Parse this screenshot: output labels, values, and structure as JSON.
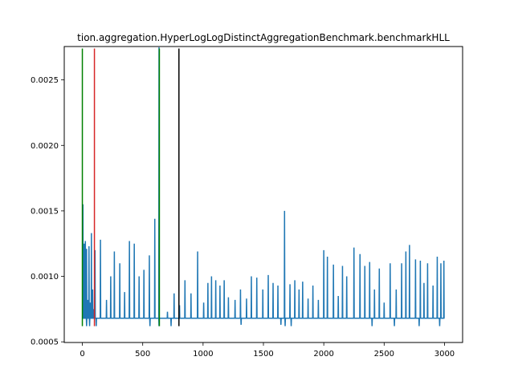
{
  "chart_data": {
    "type": "line",
    "title": "tion.aggregation.HyperLogLogDistinctAggregationBenchmark.benchmarkHLL",
    "xlabel": "",
    "ylabel": "",
    "xlim": [
      -150,
      3150
    ],
    "ylim": [
      0.000495,
      0.002755
    ],
    "x_ticks": [
      0,
      500,
      1000,
      1500,
      2000,
      2500,
      3000
    ],
    "x_tick_labels": [
      "0",
      "500",
      "1000",
      "1500",
      "2000",
      "2500",
      "3000"
    ],
    "y_ticks": [
      0.0005,
      0.001,
      0.0015,
      0.002,
      0.0025
    ],
    "y_tick_labels": [
      "0.0005",
      "0.0010",
      "0.0015",
      "0.0020",
      "0.0025"
    ],
    "grid": false,
    "series_color": "#1f77b4",
    "baseline": 0.00068,
    "spikes": [
      [
        5,
        0.00155
      ],
      [
        15,
        0.00125
      ],
      [
        25,
        0.00127
      ],
      [
        35,
        0.00121
      ],
      [
        45,
        0.00082
      ],
      [
        55,
        0.00123
      ],
      [
        65,
        0.0008
      ],
      [
        75,
        0.00133
      ],
      [
        85,
        0.0009
      ],
      [
        95,
        0.00075
      ],
      [
        105,
        0.0012
      ],
      [
        115,
        0.00062
      ],
      [
        150,
        0.00128
      ],
      [
        200,
        0.00082
      ],
      [
        235,
        0.001
      ],
      [
        265,
        0.00119
      ],
      [
        310,
        0.0011
      ],
      [
        350,
        0.00088
      ],
      [
        390,
        0.00127
      ],
      [
        430,
        0.00125
      ],
      [
        470,
        0.001
      ],
      [
        510,
        0.00105
      ],
      [
        555,
        0.00116
      ],
      [
        600,
        0.00144
      ],
      [
        635,
        0.00275
      ],
      [
        705,
        0.00073
      ],
      [
        760,
        0.00087
      ],
      [
        805,
        0.00078
      ],
      [
        850,
        0.00097
      ],
      [
        900,
        0.00087
      ],
      [
        955,
        0.00119
      ],
      [
        1005,
        0.0008
      ],
      [
        1040,
        0.00095
      ],
      [
        1070,
        0.001
      ],
      [
        1105,
        0.00097
      ],
      [
        1140,
        0.00093
      ],
      [
        1175,
        0.00097
      ],
      [
        1210,
        0.00084
      ],
      [
        1265,
        0.00082
      ],
      [
        1310,
        0.0009
      ],
      [
        1360,
        0.00083
      ],
      [
        1400,
        0.001
      ],
      [
        1445,
        0.00099
      ],
      [
        1495,
        0.0009
      ],
      [
        1540,
        0.00101
      ],
      [
        1580,
        0.00095
      ],
      [
        1620,
        0.00093
      ],
      [
        1675,
        0.0015
      ],
      [
        1720,
        0.00094
      ],
      [
        1760,
        0.00097
      ],
      [
        1795,
        0.0009
      ],
      [
        1825,
        0.00096
      ],
      [
        1870,
        0.00083
      ],
      [
        1910,
        0.00093
      ],
      [
        1955,
        0.00082
      ],
      [
        2000,
        0.0012
      ],
      [
        2030,
        0.00115
      ],
      [
        2080,
        0.00109
      ],
      [
        2120,
        0.00085
      ],
      [
        2155,
        0.00108
      ],
      [
        2190,
        0.001
      ],
      [
        2250,
        0.00122
      ],
      [
        2300,
        0.00117
      ],
      [
        2340,
        0.00108
      ],
      [
        2380,
        0.00111
      ],
      [
        2420,
        0.0009
      ],
      [
        2460,
        0.00106
      ],
      [
        2500,
        0.0008
      ],
      [
        2550,
        0.0011
      ],
      [
        2600,
        0.0009
      ],
      [
        2645,
        0.0011
      ],
      [
        2680,
        0.00119
      ],
      [
        2710,
        0.00124
      ],
      [
        2760,
        0.00113
      ],
      [
        2800,
        0.00112
      ],
      [
        2830,
        0.00095
      ],
      [
        2860,
        0.0011
      ],
      [
        2905,
        0.00093
      ],
      [
        2940,
        0.00115
      ],
      [
        2970,
        0.0011
      ],
      [
        2995,
        0.00112
      ]
    ],
    "dips": [
      [
        35,
        0.00062
      ],
      [
        60,
        0.00062
      ],
      [
        115,
        0.00062
      ],
      [
        560,
        0.00062
      ],
      [
        635,
        0.00062
      ],
      [
        735,
        0.00062
      ],
      [
        1315,
        0.00063
      ],
      [
        1645,
        0.00063
      ],
      [
        1680,
        0.00062
      ],
      [
        1730,
        0.00062
      ],
      [
        2400,
        0.00062
      ],
      [
        2585,
        0.00062
      ],
      [
        2790,
        0.00062
      ],
      [
        2960,
        0.00062
      ]
    ],
    "vertical_lines": [
      {
        "x": 0,
        "y0": 0.00062,
        "y1": 0.00274,
        "color": "#008000"
      },
      {
        "x": 100,
        "y0": 0.00062,
        "y1": 0.00274,
        "color": "#d62728"
      },
      {
        "x": 638,
        "y0": 0.00062,
        "y1": 0.00274,
        "color": "#008000"
      },
      {
        "x": 800,
        "y0": 0.00062,
        "y1": 0.00274,
        "color": "#000000"
      }
    ],
    "x_end": 3000
  }
}
